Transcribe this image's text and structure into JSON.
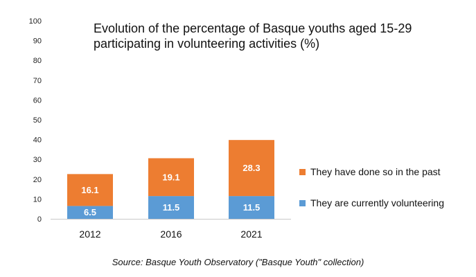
{
  "chart_data": {
    "type": "bar",
    "stacked": true,
    "title": "Evolution of the percentage of Basque youths aged 15-29 participating in volunteering activities (%)",
    "title_lines": [
      "Evolution of the percentage of Basque youths aged 15-29",
      "participating in volunteering activities (%)"
    ],
    "categories": [
      "2012",
      "2016",
      "2021"
    ],
    "series": [
      {
        "name": "They are currently volunteering",
        "values": [
          6.5,
          11.5,
          11.5
        ],
        "color": "#5B9BD5"
      },
      {
        "name": "They have done so in the past",
        "values": [
          16.1,
          19.1,
          28.3
        ],
        "color": "#ED7D31"
      }
    ],
    "data_labels": true,
    "xlabel": "",
    "ylabel": "",
    "ylim": [
      0,
      100
    ],
    "yticks": [
      "0",
      "10",
      "20",
      "30",
      "40",
      "50",
      "60",
      "70",
      "80",
      "90",
      "100"
    ],
    "grid": false,
    "legend_position": "right",
    "legend_order": [
      1,
      0
    ]
  },
  "source": "Source: Basque Youth Observatory (\"Basque Youth\" collection)"
}
